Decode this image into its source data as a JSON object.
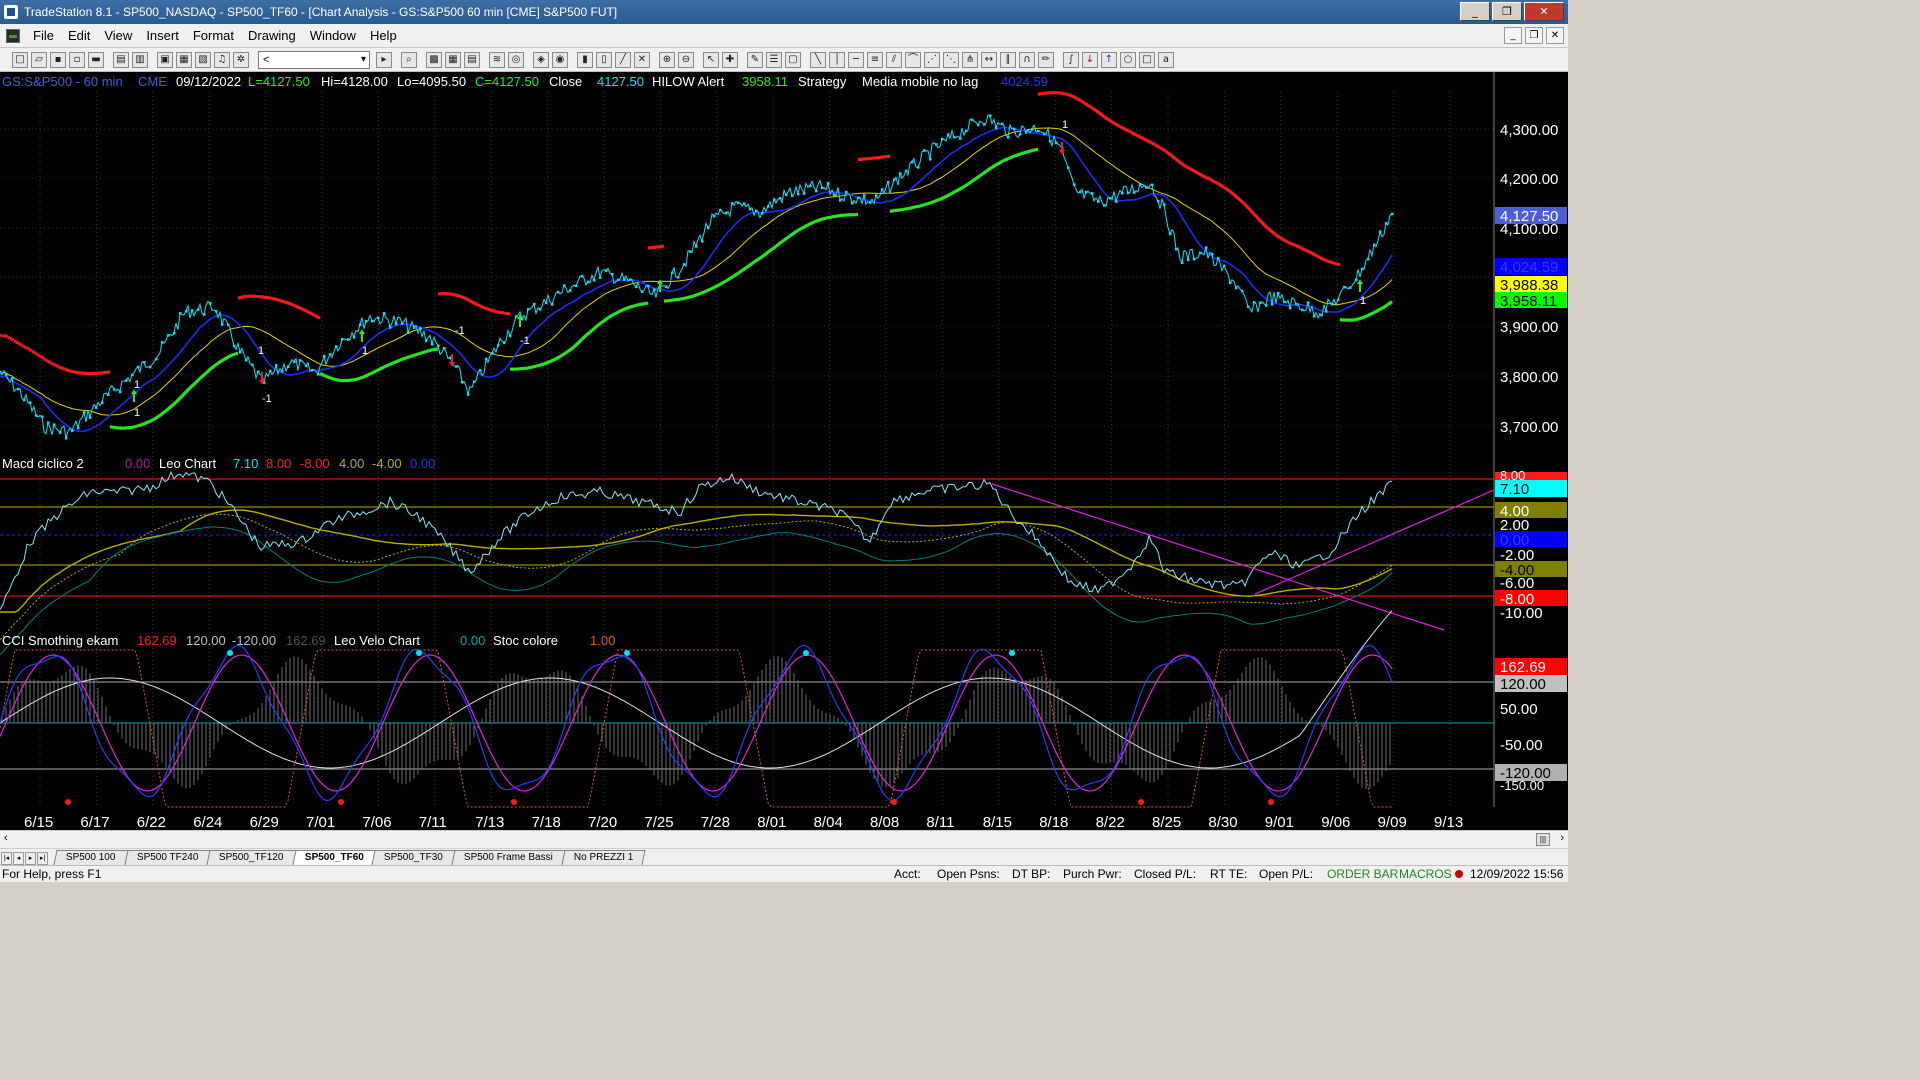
{
  "window": {
    "title": "TradeStation 8.1 - SP500_NASDAQ - SP500_TF60 - [Chart Analysis - GS:S&P500  60 min  [CME] S&P500 FUT]",
    "controls": {
      "minimize": "_",
      "restore": "❐",
      "close": "✕"
    }
  },
  "menu": [
    "File",
    "Edit",
    "View",
    "Insert",
    "Format",
    "Drawing",
    "Window",
    "Help"
  ],
  "toolbar": {
    "combo_value": "<"
  },
  "chart_header": {
    "symbol": "GS:S&P500 - 60 min",
    "exchange": "CME",
    "date": "09/12/2022",
    "last": "L=4127.50",
    "high": "Hi=4128.00",
    "low": "Lo=4095.50",
    "close_val": "C=4127.50",
    "close_label": "Close",
    "close_num": "4127.50",
    "hilow": "HILOW Alert",
    "hilow_val": "3958.11",
    "strategy": "Strategy",
    "media": "Media mobile no lag",
    "media_val": "4024.59"
  },
  "macd_header": {
    "name": "Macd ciclico 2",
    "v1": "0.00",
    "leo": "Leo Chart",
    "v2": "7.10",
    "v3": "8.00",
    "v4": "-8.00",
    "v5": "4.00",
    "v6": "-4.00",
    "v7": "0.00"
  },
  "cci_header": {
    "name": "CCI Smothing ekam",
    "v1": "162.69",
    "v2": "120.00",
    "v3": "-120.00",
    "v4": "162.69",
    "leo": "Leo Velo Chart",
    "v5": "0.00",
    "stoc": "Stoc colore",
    "v6": "1.00"
  },
  "price_axis": [
    "4,300.00",
    "4,200.00",
    "4,100.00",
    "3,900.00",
    "3,800.00",
    "3,700.00"
  ],
  "price_tags": [
    {
      "text": "4,127.50",
      "bg": "#4a5fd6",
      "fg": "#ffffff"
    },
    {
      "text": "4,024.59",
      "bg": "#0000ff",
      "fg": "#3030ff"
    },
    {
      "text": "3,988.38",
      "bg": "#ffff00",
      "fg": "#000000"
    },
    {
      "text": "3,958.11",
      "bg": "#00ff00",
      "fg": "#000000"
    }
  ],
  "macd_axis": [
    "7.10",
    "4.00",
    "2.00",
    "0.00",
    "-2.00",
    "-4.00",
    "-6.00",
    "-8.00",
    "-10.00"
  ],
  "macd_axis_partial": "8.00",
  "cci_axis": [
    "162.69",
    "120.00",
    "50.00",
    "-50.00",
    "-120.00"
  ],
  "cci_axis_partial": "-150.00",
  "dates": [
    "6/15",
    "6/17",
    "6/22",
    "6/24",
    "6/29",
    "7/01",
    "7/06",
    "7/11",
    "7/13",
    "7/18",
    "7/20",
    "7/25",
    "7/28",
    "8/01",
    "8/04",
    "8/08",
    "8/11",
    "8/15",
    "8/18",
    "8/22",
    "8/25",
    "8/30",
    "9/01",
    "9/06",
    "9/09",
    "9/13"
  ],
  "signal_labels": [
    "1",
    "-1",
    "1",
    "1",
    "-1",
    "1",
    "1",
    "-1",
    "1"
  ],
  "tabs": [
    "SP500 100",
    "SP500 TF240",
    "SP500_TF120",
    "SP500_TF60",
    "SP500_TF30",
    "SP500 Frame Bassi",
    "No PREZZI 1"
  ],
  "active_tab": "SP500_TF60",
  "status": {
    "help": "For Help, press F1",
    "acct": "Acct:",
    "open_psns": "Open Psns:",
    "dt_bp": "DT BP:",
    "purch": "Purch Pwr:",
    "closed_pl": "Closed P/L:",
    "rt_te": "RT TE:",
    "open_pl": "Open P/L:",
    "order_bar": "ORDER BAR",
    "macros": "MACROS",
    "datetime": "12/09/2022 15:56"
  },
  "colors": {
    "price": "#00e5ff",
    "ma_blue": "#1a2cff",
    "ma_yellow": "#e6d200",
    "hilow_green": "#22ee22",
    "hilow_red": "#ff1a1a",
    "magenta": "#e020e0"
  }
}
